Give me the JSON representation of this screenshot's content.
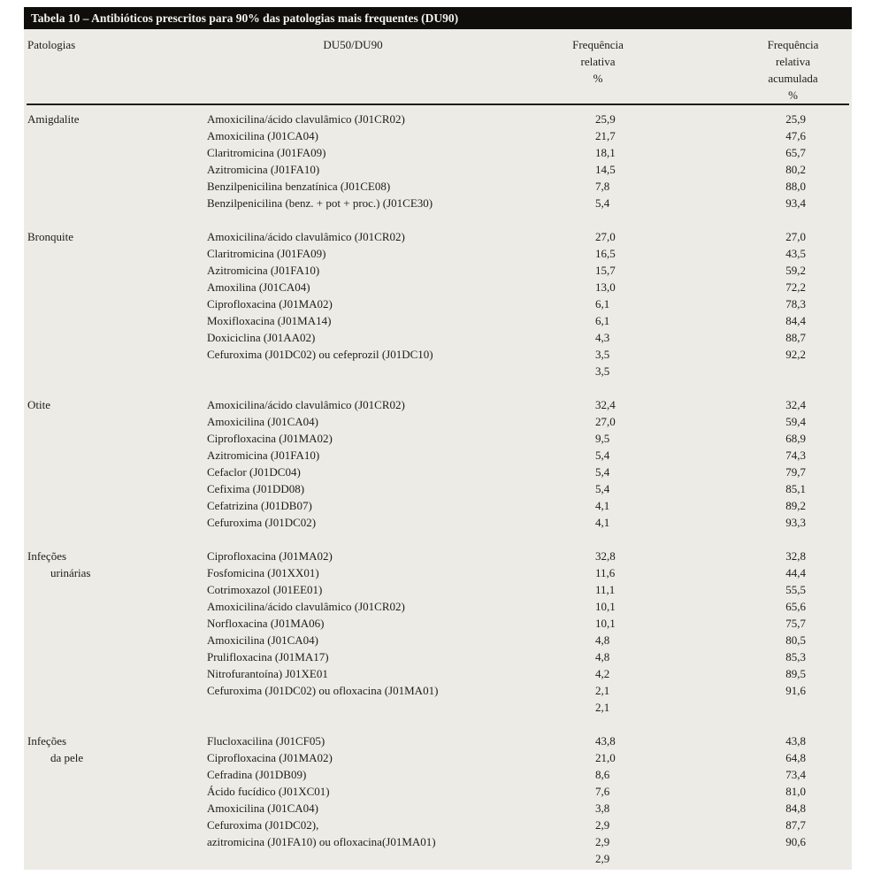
{
  "colors": {
    "card_bg": "#ECEBE5",
    "title_bar_bg": "#0F0E0B",
    "title_text": "#F4F3EE",
    "text": "#1E1D1A",
    "rule": "#1E1D1A"
  },
  "table": {
    "title": "Tabela 10 – Antibióticos prescritos para 90% das patologias mais frequentes (DU90)",
    "header": {
      "pathology": "Patologias",
      "du": "DU50/DU90",
      "freq_lines": [
        "Frequência",
        "relativa",
        "%"
      ],
      "cum_lines": [
        "Frequência",
        "relativa",
        "acumulada",
        "%"
      ]
    },
    "groups": [
      {
        "pathology_lines": [
          "Amigdalite"
        ],
        "rows": [
          {
            "drug": "Amoxicilina/ácido clavulâmico (J01CR02)",
            "freq": "25,9",
            "cum": "25,9"
          },
          {
            "drug": "Amoxicilina (J01CA04)",
            "freq": "21,7",
            "cum": "47,6"
          },
          {
            "drug": "Claritromicina (J01FA09)",
            "freq": "18,1",
            "cum": "65,7"
          },
          {
            "drug": "Azitromicina (J01FA10)",
            "freq": "14,5",
            "cum": "80,2"
          },
          {
            "drug": "Benzilpenicilina benzatínica (J01CE08)",
            "freq": "7,8",
            "cum": "88,0"
          },
          {
            "drug": "Benzilpenicilina (benz. + pot + proc.) (J01CE30)",
            "freq": "5,4",
            "cum": "93,4"
          }
        ]
      },
      {
        "pathology_lines": [
          "Bronquite"
        ],
        "rows": [
          {
            "drug": "Amoxicilina/ácido clavulâmico (J01CR02)",
            "freq": "27,0",
            "cum": "27,0"
          },
          {
            "drug": "Claritromicina (J01FA09)",
            "freq": "16,5",
            "cum": "43,5"
          },
          {
            "drug": "Azitromicina (J01FA10)",
            "freq": "15,7",
            "cum": "59,2"
          },
          {
            "drug": "Amoxilina (J01CA04)",
            "freq": "13,0",
            "cum": "72,2"
          },
          {
            "drug": "Ciprofloxacina (J01MA02)",
            "freq": "6,1",
            "cum": "78,3"
          },
          {
            "drug": "Moxifloxacina (J01MA14)",
            "freq": "6,1",
            "cum": "84,4"
          },
          {
            "drug": "Doxiciclina (J01AA02)",
            "freq": "4,3",
            "cum": "88,7"
          },
          {
            "drug": "Cefuroxima (J01DC02) ou cefeprozil (J01DC10)",
            "freq": "3,5",
            "cum": "92,2"
          },
          {
            "drug": "",
            "freq": "3,5",
            "cum": ""
          }
        ]
      },
      {
        "pathology_lines": [
          "Otite"
        ],
        "rows": [
          {
            "drug": "Amoxicilina/ácido clavulâmico (J01CR02)",
            "freq": "32,4",
            "cum": "32,4"
          },
          {
            "drug": "Amoxicilina (J01CA04)",
            "freq": "27,0",
            "cum": "59,4"
          },
          {
            "drug": "Ciprofloxacina (J01MA02)",
            "freq": "9,5",
            "cum": "68,9"
          },
          {
            "drug": "Azitromicina (J01FA10)",
            "freq": "5,4",
            "cum": "74,3"
          },
          {
            "drug": "Cefaclor (J01DC04)",
            "freq": "5,4",
            "cum": "79,7"
          },
          {
            "drug": "Cefixima (J01DD08)",
            "freq": "5,4",
            "cum": "85,1"
          },
          {
            "drug": "Cefatrizina (J01DB07)",
            "freq": "4,1",
            "cum": "89,2"
          },
          {
            "drug": "Cefuroxima (J01DC02)",
            "freq": "4,1",
            "cum": "93,3"
          }
        ]
      },
      {
        "pathology_lines": [
          "Infeções",
          "urinárias"
        ],
        "rows": [
          {
            "drug": "Ciprofloxacina (J01MA02)",
            "freq": "32,8",
            "cum": "32,8"
          },
          {
            "drug": "Fosfomicina (J01XX01)",
            "freq": "11,6",
            "cum": "44,4"
          },
          {
            "drug": "Cotrimoxazol (J01EE01)",
            "freq": "11,1",
            "cum": "55,5"
          },
          {
            "drug": "Amoxicilina/ácido clavulâmico (J01CR02)",
            "freq": "10,1",
            "cum": "65,6"
          },
          {
            "drug": "Norfloxacina (J01MA06)",
            "freq": "10,1",
            "cum": "75,7"
          },
          {
            "drug": "Amoxicilina (J01CA04)",
            "freq": "4,8",
            "cum": "80,5"
          },
          {
            "drug": "Prulifloxacina (J01MA17)",
            "freq": "4,8",
            "cum": "85,3"
          },
          {
            "drug": "Nitrofurantoína) J01XE01",
            "freq": "4,2",
            "cum": "89,5"
          },
          {
            "drug": "Cefuroxima (J01DC02) ou ofloxacina (J01MA01)",
            "freq": "2,1",
            "cum": "91,6"
          },
          {
            "drug": "",
            "freq": "2,1",
            "cum": ""
          }
        ]
      },
      {
        "pathology_lines": [
          "Infeções",
          "da pele"
        ],
        "rows": [
          {
            "drug": "Flucloxacilina (J01CF05)",
            "freq": "43,8",
            "cum": "43,8"
          },
          {
            "drug": "Ciprofloxacina (J01MA02)",
            "freq": "21,0",
            "cum": "64,8"
          },
          {
            "drug": "Cefradina (J01DB09)",
            "freq": "8,6",
            "cum": "73,4"
          },
          {
            "drug": "Ácido fucídico (J01XC01)",
            "freq": "7,6",
            "cum": "81,0"
          },
          {
            "drug": "Amoxicilina (J01CA04)",
            "freq": "3,8",
            "cum": "84,8"
          },
          {
            "drug": "Cefuroxima (J01DC02),",
            "freq": "2,9",
            "cum": "87,7"
          },
          {
            "drug": "azitromicina (J01FA10) ou ofloxacina(J01MA01)",
            "freq": "2,9",
            "cum": "90,6"
          },
          {
            "drug": "",
            "freq": "2,9",
            "cum": ""
          }
        ]
      }
    ]
  }
}
